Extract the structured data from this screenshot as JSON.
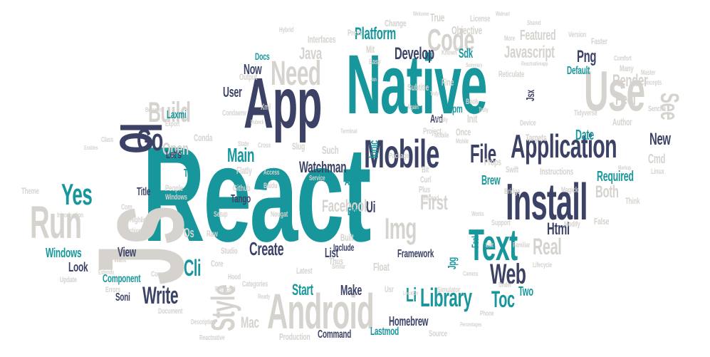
{
  "colors": {
    "teal": "#17979c",
    "navy": "#3b4266",
    "grey": "#d6d3cf",
    "background": "#ffffff"
  },
  "words": [
    "React",
    "Native",
    "App",
    "Js",
    "Install",
    "Mobile",
    "Application",
    "Android",
    "Use",
    "Io",
    "Text",
    "Code",
    "Need",
    "Run",
    "Build",
    "Yes",
    "Go",
    "Style",
    "Web",
    "Library",
    "Img",
    "Platform",
    "Javascript",
    "Write",
    "Create",
    "Main",
    "Cli",
    "Html",
    "File",
    "Real",
    "Facebook",
    "First",
    "Develop",
    "Toc",
    "Open",
    "Windows",
    "Look",
    "View",
    "Start",
    "Make",
    "Homebrew",
    "Command",
    "Mac",
    "Production",
    "Watchman",
    "Component",
    "Framework",
    "Required",
    "Date",
    "Both",
    "See",
    "Feel",
    "Render",
    "Png",
    "Sdk",
    "Ionic",
    "Jsx",
    "Default",
    "Npm",
    "Avd",
    "User",
    "Now",
    "Docs",
    "Lastmod",
    "Two",
    "Fssl",
    "Jpg",
    "Float",
    "Bin",
    "Apis",
    "Ui",
    "Author",
    "New",
    "Cmd",
    "Targets",
    "Tags",
    "Let's",
    "Title",
    "Laxmi",
    "Soni",
    "Tango",
    "Github",
    "Os",
    "Brew",
    "Props",
    "Swift",
    "Instructions",
    "Init",
    "Bit",
    "Curl",
    "Plus",
    "Once",
    "Such",
    "Slug",
    "Flatly",
    "Conda",
    "Condaenv",
    "Core",
    "Raw",
    "Studio",
    "Hood",
    "Latest",
    "Categories",
    "Usr",
    "Li",
    "Source",
    "Simulator",
    "Under",
    "Theme",
    "Include",
    "Thus",
    "List",
    "Built",
    "Nougat",
    "Fine",
    "Subtitle",
    "Reticulate",
    "Mit",
    "Easy",
    "Objective",
    "Featured",
    "True",
    "License",
    "Change",
    "Press",
    "Interfaces",
    "Java",
    "Tidyverse",
    "Sencha",
    "Many",
    "Faster",
    "Version",
    "Linux",
    "Document",
    "Update",
    "Errors",
    "Reflected",
    "Converts",
    "Want",
    "Highlight",
    "Watching",
    "Introduction",
    "People",
    "Windows",
    "Setup",
    "Com",
    "Device",
    "Mobile",
    "Book",
    "Project",
    "Package",
    "Bridge",
    "Think",
    "Magick",
    "Modify",
    "False",
    "Support",
    "Works",
    "Lifecycle",
    "Reactnative",
    "Description",
    "Output",
    "Xml",
    "Export",
    "Class",
    "Between",
    "Baidu",
    "Master",
    "Concepts",
    "Comfort",
    "Shared",
    "More",
    "Known",
    "Welcome",
    "Walmart",
    "Hybrid",
    "State",
    "Cross",
    "Access",
    "Service",
    "Terminal",
    "Again",
    "Truly",
    "Really",
    "Mobile",
    "Instead",
    "Familiar",
    "Edit",
    "Camera",
    "Location",
    "Phone",
    "Percentages",
    "Extends",
    "Ready",
    "Similar",
    "Reactnativeapp",
    "Summary",
    "Markup",
    "Rubeck",
    "Jan",
    "Truly",
    "Enables"
  ]
}
